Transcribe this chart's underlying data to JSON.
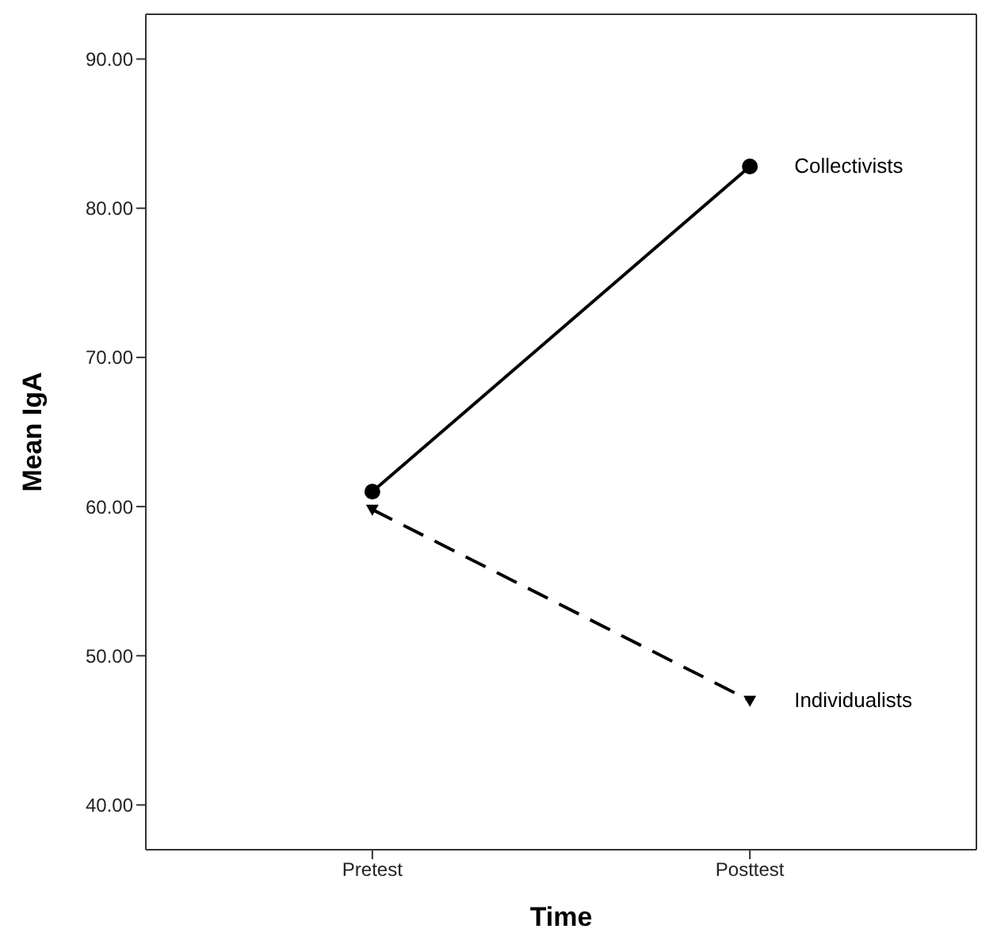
{
  "chart_data": {
    "type": "line",
    "xlabel": "Time",
    "ylabel": "Mean IgA",
    "categories": [
      "Pretest",
      "Posttest"
    ],
    "ylim": [
      37,
      93
    ],
    "yticks": [
      {
        "value": 40,
        "label": "40.00"
      },
      {
        "value": 50,
        "label": "50.00"
      },
      {
        "value": 60,
        "label": "60.00"
      },
      {
        "value": 70,
        "label": "70.00"
      },
      {
        "value": 80,
        "label": "80.00"
      },
      {
        "value": 90,
        "label": "90.00"
      }
    ],
    "grid": false,
    "legend": false,
    "series": [
      {
        "name": "Collectivists",
        "color": "#000000",
        "values": [
          61,
          82.8
        ],
        "marker": "circle",
        "line_style": "solid"
      },
      {
        "name": "Individualists",
        "color": "#000000",
        "values": [
          59.8,
          47
        ],
        "marker": "triangle",
        "line_style": "dashed"
      }
    ]
  }
}
